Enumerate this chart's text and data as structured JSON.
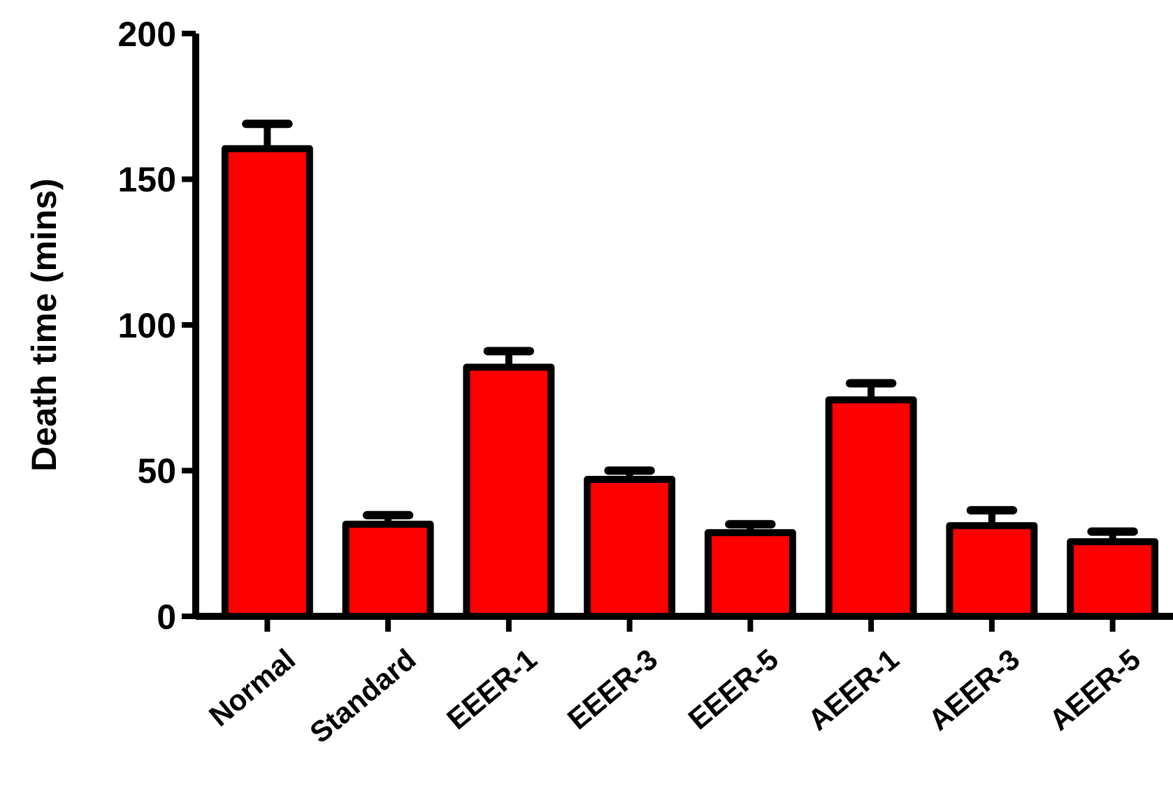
{
  "chart_data": {
    "type": "bar",
    "ylabel": "Death time (mins)",
    "categories": [
      "Normal",
      "Standard",
      "EEER-1",
      "EEER-3",
      "EEER-5",
      "AEER-1",
      "AEER-3",
      "AEER-5"
    ],
    "values": [
      160.5,
      31.6,
      85.5,
      47,
      28.7,
      74.3,
      31.1,
      25.6
    ],
    "errors": [
      [
        160.5,
        169
      ],
      [
        31.6,
        34.7
      ],
      [
        85.5,
        91
      ],
      [
        47,
        50
      ],
      [
        28.7,
        31.6
      ],
      [
        74.3,
        80
      ],
      [
        31.1,
        36.4
      ],
      [
        25.6,
        29.1
      ]
    ],
    "color": "#ff0000",
    "ylim": [
      0,
      200
    ],
    "yticks": [
      0,
      50,
      100,
      150,
      200
    ],
    "grid": false
  }
}
